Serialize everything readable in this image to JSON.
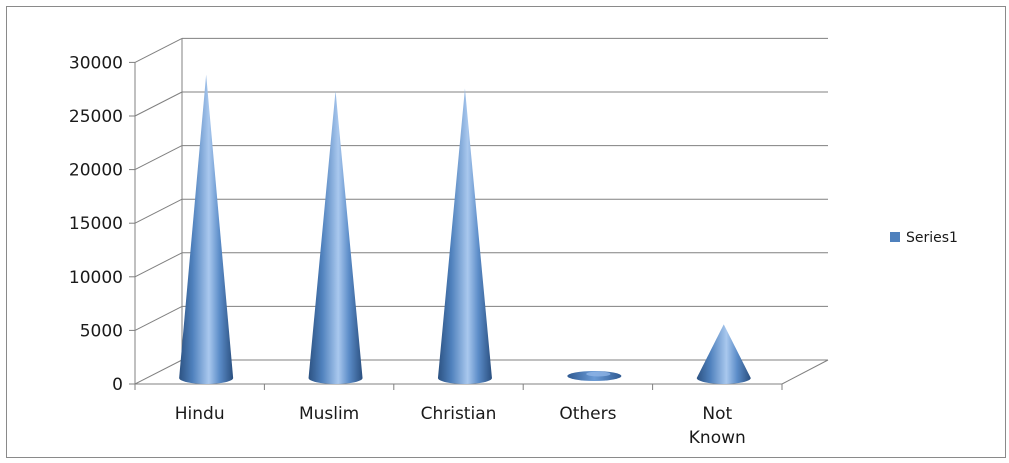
{
  "chart_data": {
    "type": "bar",
    "style": "3d-cone",
    "categories": [
      "Hindu",
      "Muslim",
      "Christian",
      "Others",
      "Not Known"
    ],
    "series": [
      {
        "name": "Series1",
        "values": [
          28300,
          26800,
          27000,
          200,
          5000
        ]
      }
    ],
    "y_ticks": [
      "0",
      "5000",
      "10000",
      "15000",
      "20000",
      "25000",
      "30000"
    ],
    "ylim": [
      0,
      30000
    ],
    "grid": true,
    "legend": "right",
    "colors": {
      "cone": "#4f81bd",
      "cone_dark": "#2a4f7f",
      "cone_light": "#9cc0ea",
      "grid": "#808080"
    }
  }
}
